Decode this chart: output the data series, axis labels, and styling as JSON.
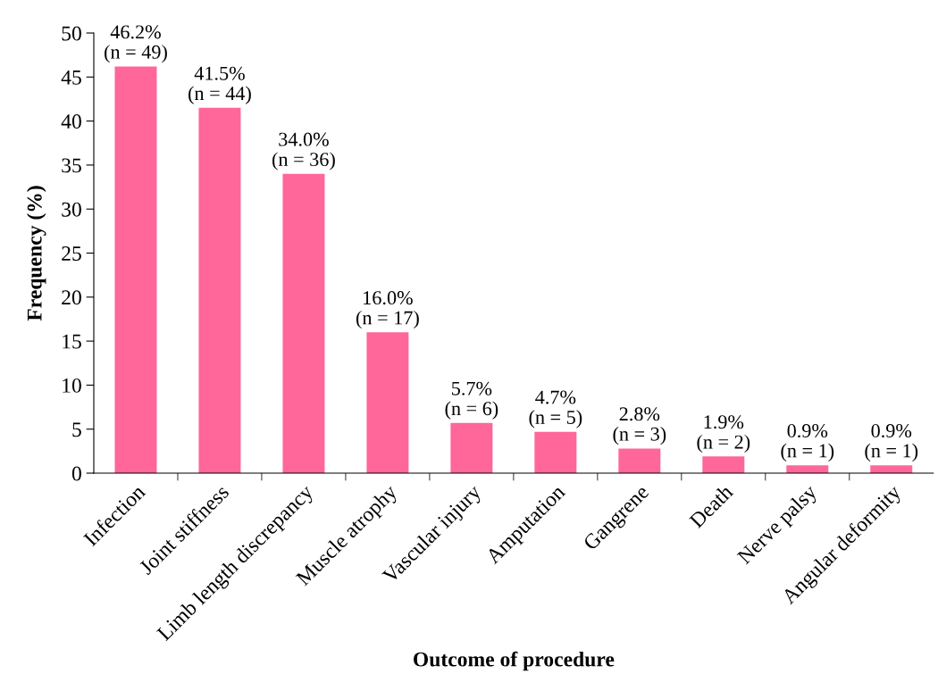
{
  "chart_data": {
    "type": "bar",
    "xlabel": "Outcome of procedure",
    "ylabel": "Frequency (%)",
    "categories": [
      "Infection",
      "Joint stiffness",
      "Limb length discrepancy",
      "Muscle atrophy",
      "Vascular injury",
      "Amputation",
      "Gangrene",
      "Death",
      "Nerve palsy",
      "Angular deformity"
    ],
    "values": [
      46.2,
      41.5,
      34.0,
      16.0,
      5.7,
      4.7,
      2.8,
      1.9,
      0.9,
      0.9
    ],
    "value_labels": [
      "46.2%\n(n = 49)",
      "41.5%\n(n = 44)",
      "34.0%\n(n = 36)",
      "16.0%\n(n = 17)",
      "5.7%\n(n = 6)",
      "4.7%\n(n = 5)",
      "2.8%\n(n = 3)",
      "1.9%\n(n = 2)",
      "0.9%\n(n = 1)",
      "0.9%\n(n = 1)"
    ],
    "color": "#ff6699",
    "ylim": [
      0,
      50
    ],
    "yticks": [
      0,
      5,
      10,
      15,
      20,
      25,
      30,
      35,
      40,
      45,
      50
    ],
    "grid": false,
    "legend": false
  }
}
